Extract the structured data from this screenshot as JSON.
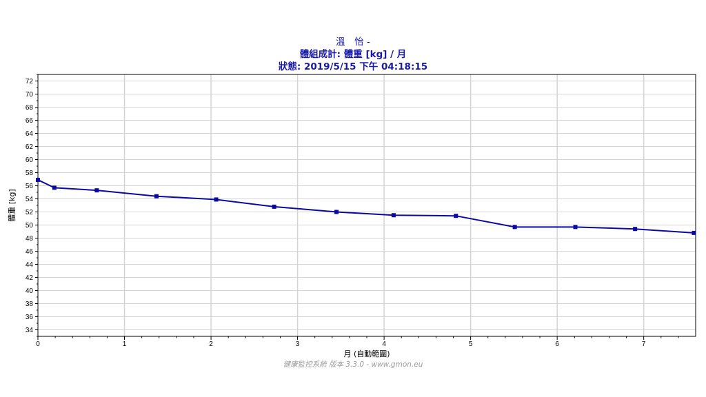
{
  "header": {
    "line1": "溫　怡 -",
    "line2": "體組成計: 體重 [kg] / 月",
    "line3": "狀態: 2019/5/15 下午 04:18:15"
  },
  "footer": "健康監控系統 版本 3.3.0 - www.gmon.eu",
  "colors": {
    "series": "#0a0aa0",
    "grid": "#d4d4d4",
    "frame": "#000000",
    "title": "#1a1aa8"
  },
  "chart_data": {
    "type": "line",
    "title": "",
    "xlabel": "月 (自動範圍)",
    "ylabel": "體重 [kg]",
    "xlim": [
      0,
      7.6
    ],
    "ylim": [
      33,
      73
    ],
    "x_ticks": [
      0,
      1,
      2,
      3,
      4,
      5,
      6,
      7
    ],
    "y_ticks": [
      34,
      36,
      38,
      40,
      42,
      44,
      46,
      48,
      50,
      52,
      54,
      56,
      58,
      60,
      62,
      64,
      66,
      68,
      70,
      72
    ],
    "grid": true,
    "series": [
      {
        "x": [
          0.0,
          0.19,
          0.68,
          1.37,
          2.06,
          2.73,
          3.45,
          4.11,
          4.83,
          5.51,
          6.21,
          6.9,
          7.58
        ],
        "values": [
          56.9,
          55.7,
          55.3,
          54.4,
          53.9,
          52.8,
          52.0,
          51.5,
          51.4,
          49.7,
          49.7,
          49.4,
          48.8
        ]
      }
    ]
  }
}
